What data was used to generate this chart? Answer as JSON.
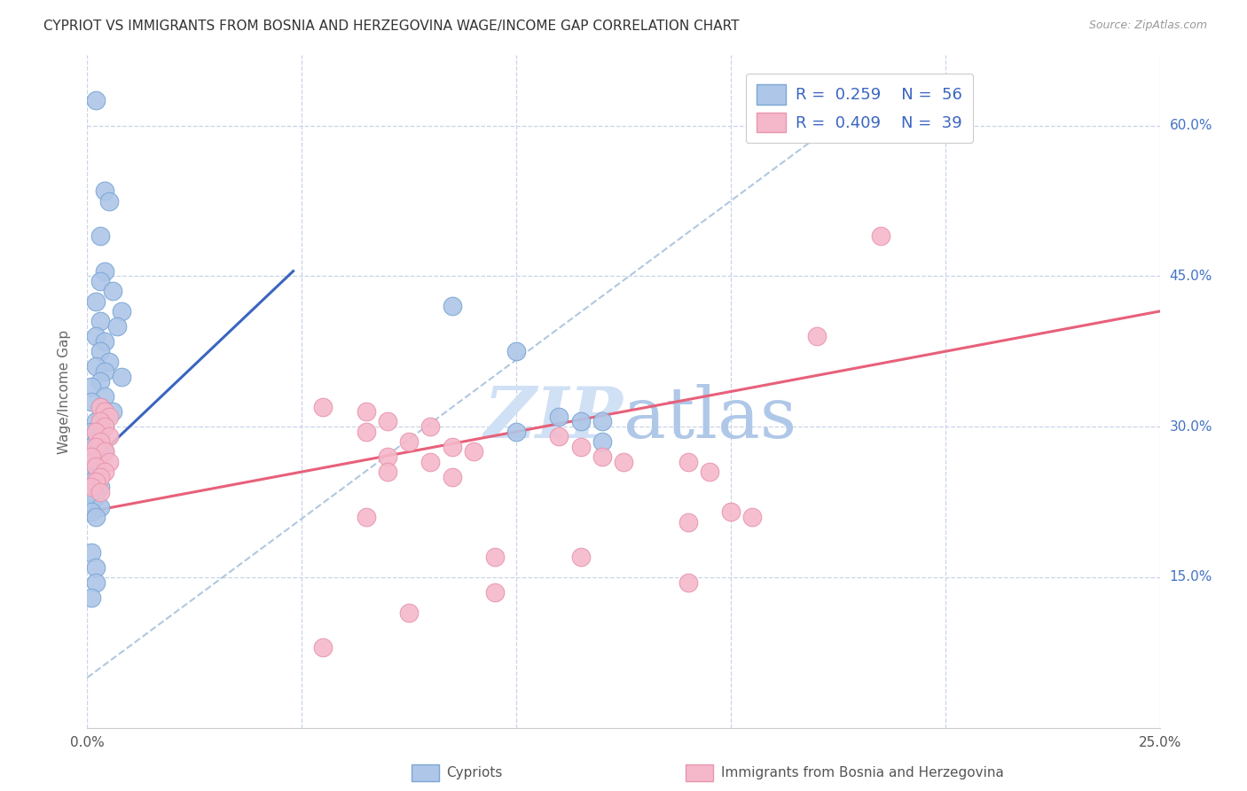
{
  "title": "CYPRIOT VS IMMIGRANTS FROM BOSNIA AND HERZEGOVINA WAGE/INCOME GAP CORRELATION CHART",
  "source": "Source: ZipAtlas.com",
  "ylabel": "Wage/Income Gap",
  "x_min": 0.0,
  "x_max": 0.25,
  "y_min": 0.0,
  "y_max": 0.67,
  "x_tick_positions": [
    0.0,
    0.05,
    0.1,
    0.15,
    0.2,
    0.25
  ],
  "x_tick_labels": [
    "0.0%",
    "",
    "",
    "",
    "",
    "25.0%"
  ],
  "y_tick_positions": [
    0.15,
    0.3,
    0.45,
    0.6
  ],
  "y_tick_labels": [
    "15.0%",
    "30.0%",
    "45.0%",
    "60.0%"
  ],
  "label_blue": "Cypriots",
  "label_pink": "Immigrants from Bosnia and Herzegovina",
  "dot_color_blue": "#aec6e8",
  "dot_color_pink": "#f5b8cb",
  "dot_edge_blue": "#7ba7d4",
  "dot_edge_pink": "#e896ae",
  "line_color_blue": "#3a65c0",
  "line_color_pink": "#e8607a",
  "line_color_dashed": "#b0c8e0",
  "watermark_color": "#d0e0f5",
  "blue_line_x0": 0.0,
  "blue_line_y0": 0.26,
  "blue_line_x1": 0.048,
  "blue_line_y1": 0.455,
  "pink_line_x0": 0.0,
  "pink_line_y0": 0.215,
  "pink_line_x1": 0.25,
  "pink_line_y1": 0.415,
  "dashed_line_x0": 0.0,
  "dashed_line_y0": 0.05,
  "dashed_line_x1": 0.18,
  "dashed_line_y1": 0.62,
  "blue_points": [
    [
      0.002,
      0.625
    ],
    [
      0.004,
      0.535
    ],
    [
      0.005,
      0.525
    ],
    [
      0.003,
      0.49
    ],
    [
      0.004,
      0.455
    ],
    [
      0.003,
      0.445
    ],
    [
      0.006,
      0.435
    ],
    [
      0.002,
      0.425
    ],
    [
      0.008,
      0.415
    ],
    [
      0.003,
      0.405
    ],
    [
      0.007,
      0.4
    ],
    [
      0.002,
      0.39
    ],
    [
      0.004,
      0.385
    ],
    [
      0.003,
      0.375
    ],
    [
      0.005,
      0.365
    ],
    [
      0.002,
      0.36
    ],
    [
      0.004,
      0.355
    ],
    [
      0.008,
      0.35
    ],
    [
      0.003,
      0.345
    ],
    [
      0.001,
      0.34
    ],
    [
      0.004,
      0.33
    ],
    [
      0.001,
      0.325
    ],
    [
      0.003,
      0.32
    ],
    [
      0.006,
      0.315
    ],
    [
      0.003,
      0.31
    ],
    [
      0.002,
      0.305
    ],
    [
      0.004,
      0.3
    ],
    [
      0.001,
      0.295
    ],
    [
      0.003,
      0.29
    ],
    [
      0.002,
      0.285
    ],
    [
      0.001,
      0.28
    ],
    [
      0.004,
      0.275
    ],
    [
      0.002,
      0.27
    ],
    [
      0.001,
      0.265
    ],
    [
      0.003,
      0.26
    ],
    [
      0.001,
      0.255
    ],
    [
      0.002,
      0.25
    ],
    [
      0.001,
      0.245
    ],
    [
      0.003,
      0.24
    ],
    [
      0.001,
      0.235
    ],
    [
      0.002,
      0.23
    ],
    [
      0.001,
      0.225
    ],
    [
      0.003,
      0.22
    ],
    [
      0.001,
      0.215
    ],
    [
      0.002,
      0.21
    ],
    [
      0.001,
      0.175
    ],
    [
      0.002,
      0.16
    ],
    [
      0.002,
      0.145
    ],
    [
      0.001,
      0.13
    ],
    [
      0.085,
      0.42
    ],
    [
      0.1,
      0.375
    ],
    [
      0.11,
      0.31
    ],
    [
      0.115,
      0.305
    ],
    [
      0.12,
      0.305
    ],
    [
      0.1,
      0.295
    ],
    [
      0.12,
      0.285
    ]
  ],
  "pink_points": [
    [
      0.003,
      0.32
    ],
    [
      0.004,
      0.315
    ],
    [
      0.005,
      0.31
    ],
    [
      0.003,
      0.305
    ],
    [
      0.004,
      0.3
    ],
    [
      0.002,
      0.295
    ],
    [
      0.005,
      0.29
    ],
    [
      0.003,
      0.285
    ],
    [
      0.002,
      0.28
    ],
    [
      0.004,
      0.275
    ],
    [
      0.001,
      0.27
    ],
    [
      0.005,
      0.265
    ],
    [
      0.002,
      0.26
    ],
    [
      0.004,
      0.255
    ],
    [
      0.003,
      0.25
    ],
    [
      0.002,
      0.245
    ],
    [
      0.001,
      0.24
    ],
    [
      0.003,
      0.235
    ],
    [
      0.055,
      0.32
    ],
    [
      0.065,
      0.315
    ],
    [
      0.07,
      0.305
    ],
    [
      0.08,
      0.3
    ],
    [
      0.065,
      0.295
    ],
    [
      0.075,
      0.285
    ],
    [
      0.085,
      0.28
    ],
    [
      0.09,
      0.275
    ],
    [
      0.07,
      0.27
    ],
    [
      0.08,
      0.265
    ],
    [
      0.07,
      0.255
    ],
    [
      0.085,
      0.25
    ],
    [
      0.11,
      0.29
    ],
    [
      0.115,
      0.28
    ],
    [
      0.12,
      0.27
    ],
    [
      0.125,
      0.265
    ],
    [
      0.14,
      0.265
    ],
    [
      0.145,
      0.255
    ],
    [
      0.15,
      0.215
    ],
    [
      0.155,
      0.21
    ],
    [
      0.17,
      0.39
    ],
    [
      0.185,
      0.49
    ],
    [
      0.14,
      0.205
    ],
    [
      0.14,
      0.145
    ],
    [
      0.095,
      0.135
    ],
    [
      0.065,
      0.21
    ],
    [
      0.055,
      0.08
    ],
    [
      0.075,
      0.115
    ],
    [
      0.115,
      0.17
    ],
    [
      0.095,
      0.17
    ]
  ]
}
